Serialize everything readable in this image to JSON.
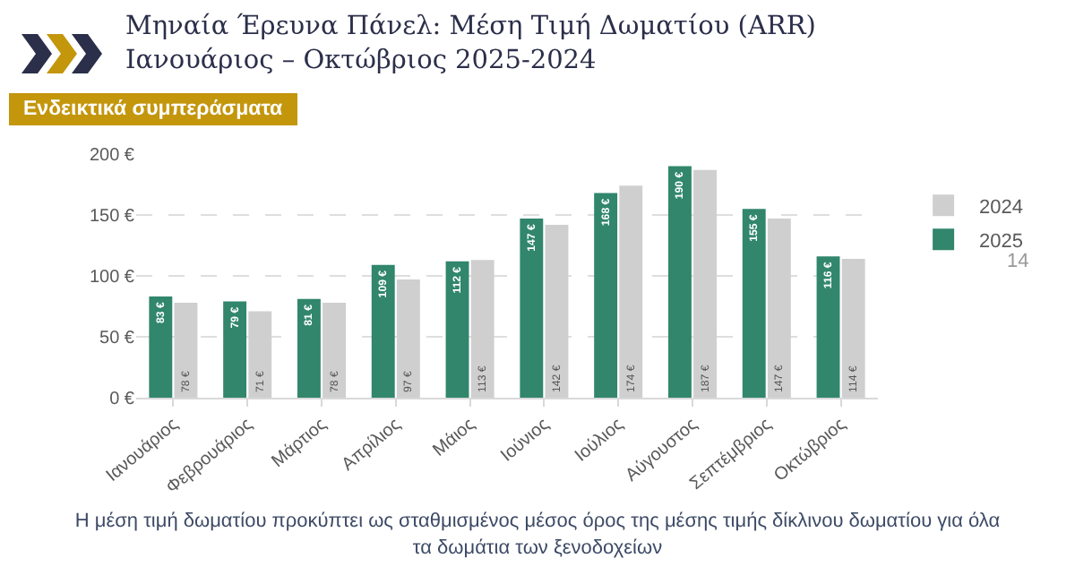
{
  "chart_data": {
    "type": "bar",
    "title": "Μηναία Έρευνα Πάνελ: Μέση Τιμή Δωματίου (ARR)",
    "subtitle": "Ιανουάριος – Οκτώβριος 2025-2024",
    "categories": [
      "Ιανουάριος",
      "Φεβρουάριος",
      "Μάρτιος",
      "Απρίλιος",
      "Μάιος",
      "Ιούνιος",
      "Ιούλιος",
      "Αύγουστος",
      "Σεπτέμβριος",
      "Οκτώβριος"
    ],
    "series": [
      {
        "name": "2025",
        "color": "#31866c",
        "values": [
          83,
          79,
          81,
          109,
          112,
          147,
          168,
          190,
          155,
          116
        ],
        "value_labels": [
          "83 €",
          "79 €",
          "81 €",
          "109 €",
          "112 €",
          "147 €",
          "168 €",
          "190 €",
          "155 €",
          "116 €"
        ]
      },
      {
        "name": "2024",
        "color": "#d0cfcf",
        "values": [
          78,
          71,
          78,
          97,
          113,
          142,
          174,
          187,
          147,
          114
        ],
        "value_labels": [
          "78 €",
          "71 €",
          "78 €",
          "97 €",
          "113 €",
          "142 €",
          "174 €",
          "187 €",
          "147 €",
          "114 €"
        ]
      }
    ],
    "ylim": [
      0,
      200
    ],
    "yticks": [
      {
        "value": 0,
        "label": "0 €"
      },
      {
        "value": 50,
        "label": "50 €"
      },
      {
        "value": 100,
        "label": "100 €"
      },
      {
        "value": 150,
        "label": "150 €"
      },
      {
        "value": 200,
        "label": "200 €"
      }
    ],
    "grid": "y",
    "legend": "right",
    "annotations": [
      "Ενδεικτικά συμπεράσματα",
      "14",
      "Η μέση τιμή δωματίου προκύπτει ως σταθμισμένος μέσος όρος της μέσης τιμής δίκλινου δωματίου για όλα τα δωμάτια των ξενοδοχείων"
    ]
  }
}
